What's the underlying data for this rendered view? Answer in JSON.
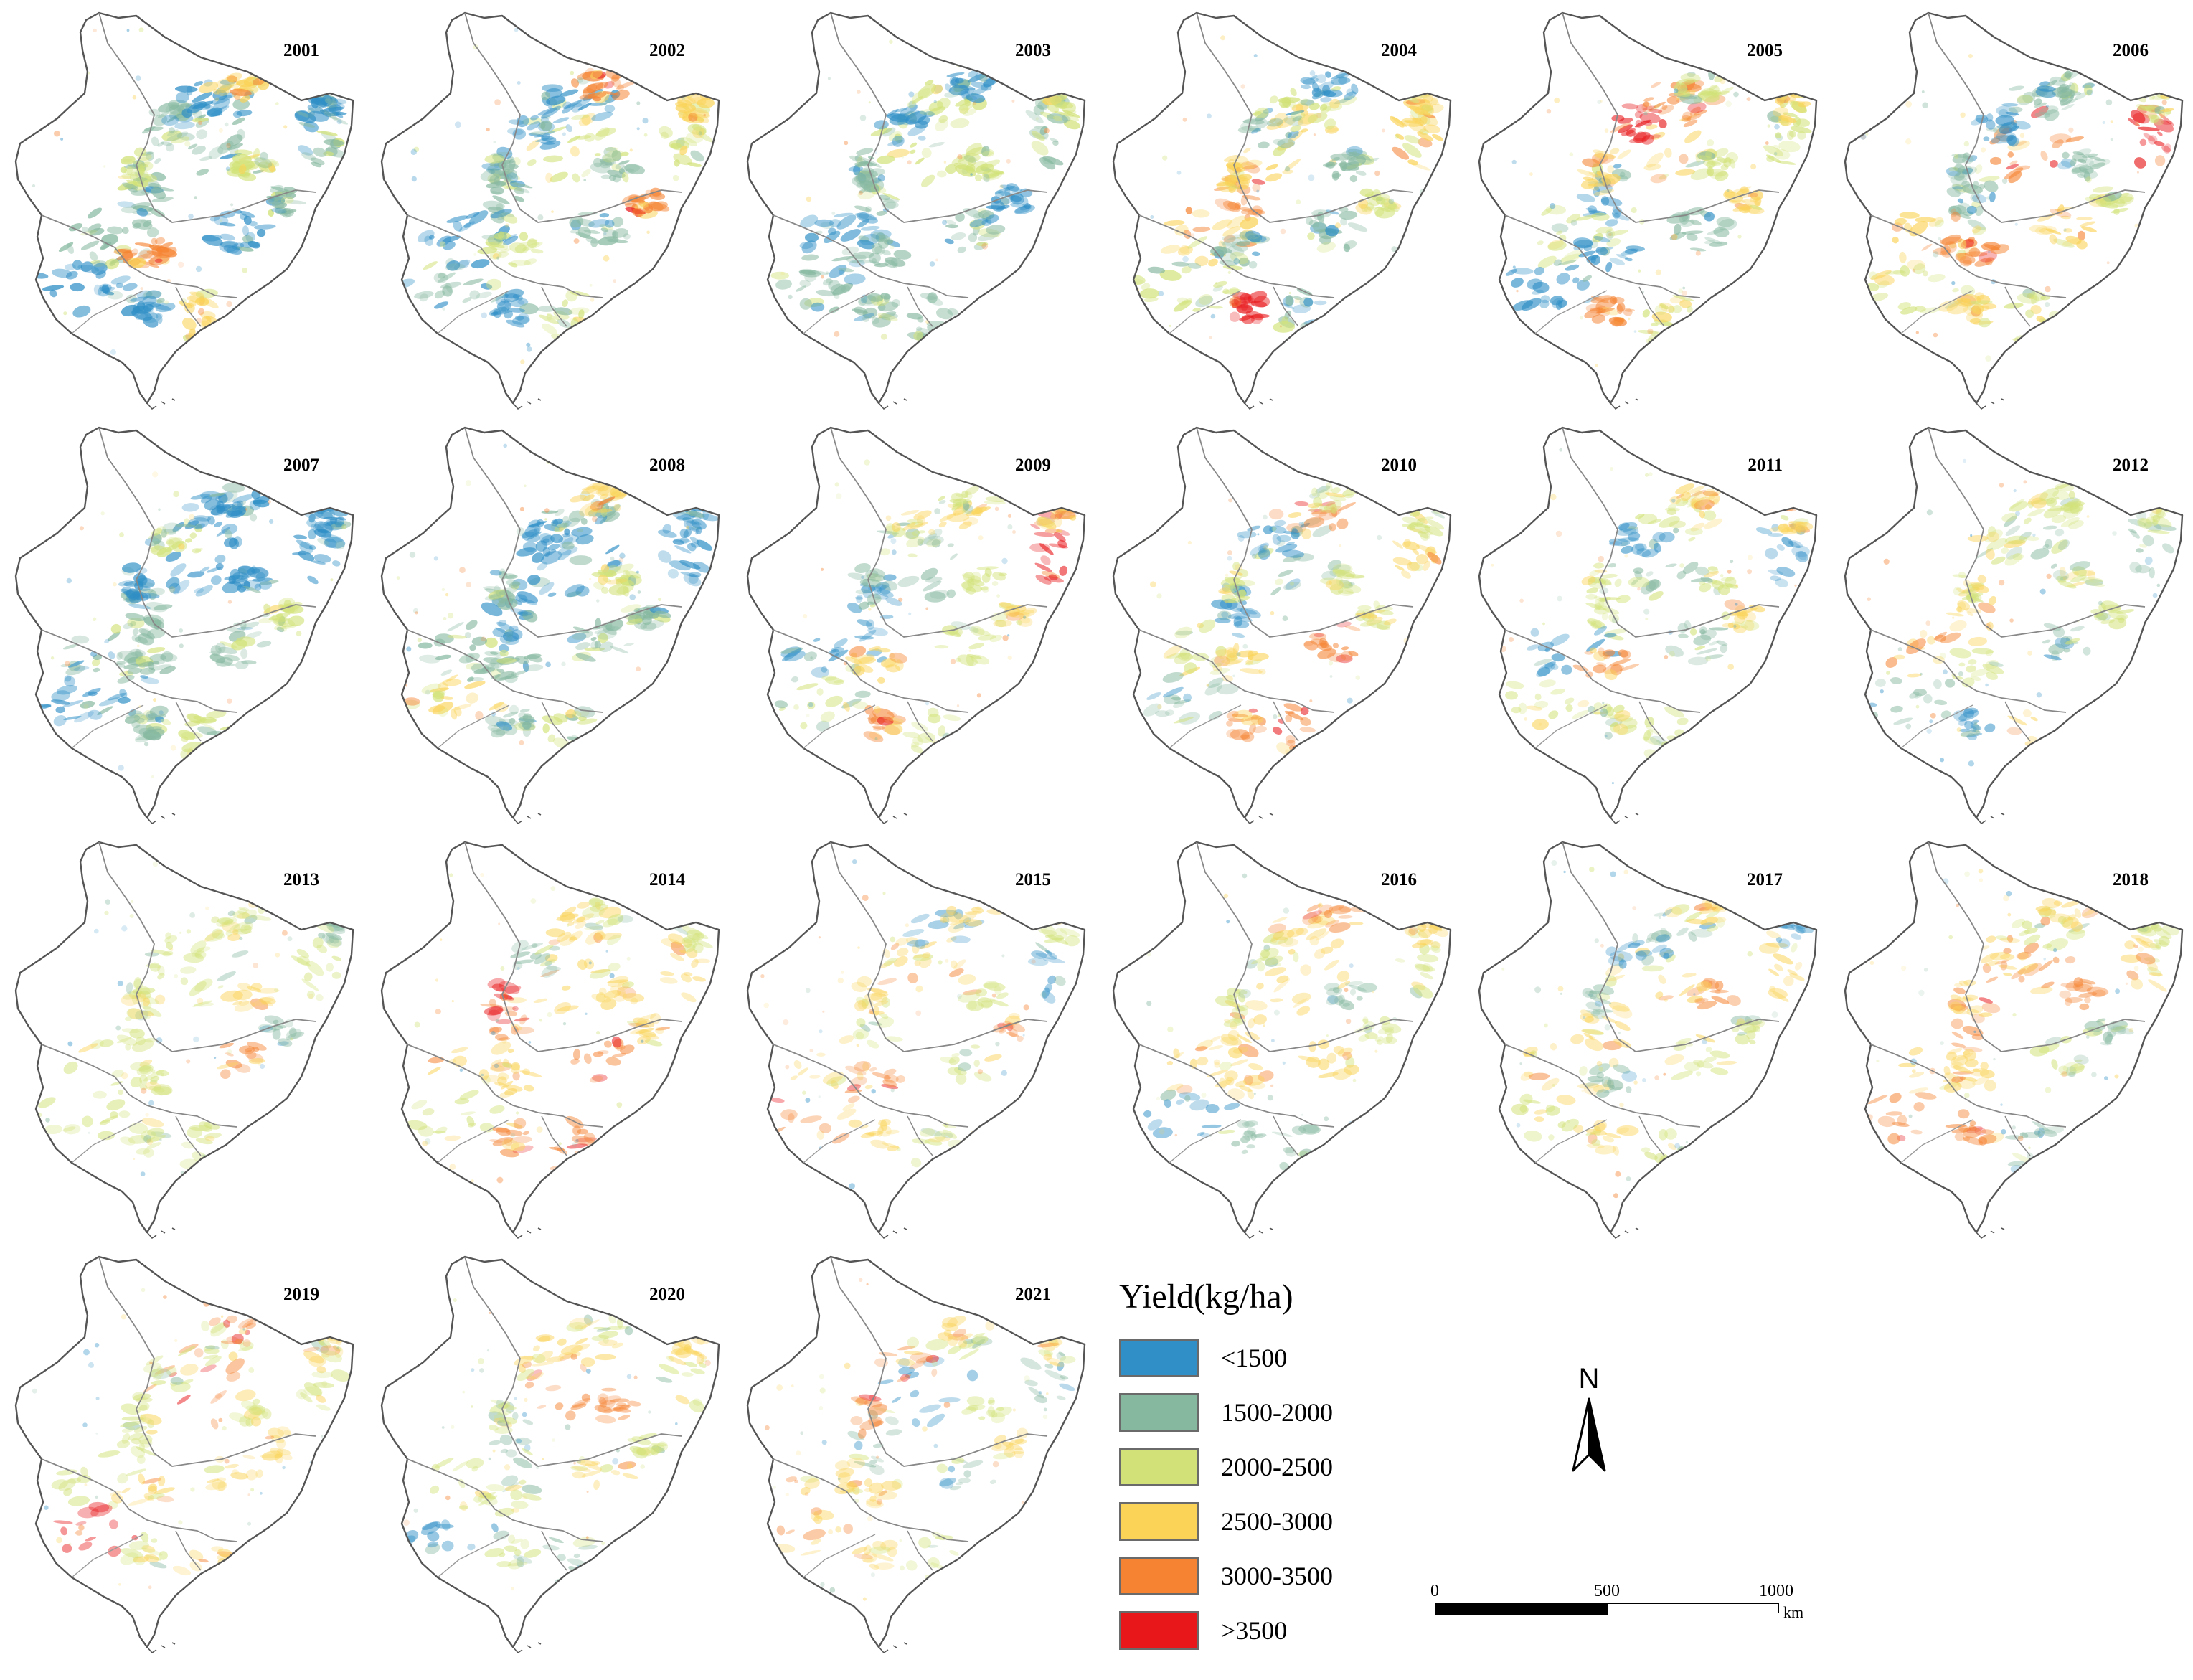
{
  "panels": [
    {
      "year": "2001",
      "intensity": 0.95,
      "weights": [
        1.0,
        0.9,
        0.25,
        0.3,
        0.2,
        0.05
      ]
    },
    {
      "year": "2002",
      "intensity": 0.85,
      "weights": [
        0.55,
        0.8,
        0.5,
        0.35,
        0.15,
        0.05
      ]
    },
    {
      "year": "2003",
      "intensity": 0.85,
      "weights": [
        0.45,
        0.95,
        0.4,
        0.3,
        0.1,
        0.05
      ]
    },
    {
      "year": "2004",
      "intensity": 0.85,
      "weights": [
        0.6,
        0.85,
        0.45,
        0.35,
        0.15,
        0.05
      ]
    },
    {
      "year": "2005",
      "intensity": 0.8,
      "weights": [
        0.3,
        0.35,
        0.9,
        0.6,
        0.2,
        0.05
      ]
    },
    {
      "year": "2006",
      "intensity": 0.75,
      "weights": [
        0.5,
        0.45,
        0.8,
        0.4,
        0.15,
        0.05
      ]
    },
    {
      "year": "2007",
      "intensity": 0.85,
      "weights": [
        0.6,
        0.9,
        0.45,
        0.35,
        0.15,
        0.05
      ]
    },
    {
      "year": "2008",
      "intensity": 0.85,
      "weights": [
        0.65,
        0.95,
        0.35,
        0.3,
        0.15,
        0.05
      ]
    },
    {
      "year": "2009",
      "intensity": 0.65,
      "weights": [
        0.2,
        0.3,
        0.9,
        0.7,
        0.2,
        0.05
      ]
    },
    {
      "year": "2010",
      "intensity": 0.65,
      "weights": [
        0.25,
        0.35,
        0.9,
        0.6,
        0.2,
        0.05
      ]
    },
    {
      "year": "2011",
      "intensity": 0.65,
      "weights": [
        0.3,
        0.35,
        0.85,
        0.6,
        0.2,
        0.05
      ]
    },
    {
      "year": "2012",
      "intensity": 0.55,
      "weights": [
        0.3,
        0.45,
        0.85,
        0.5,
        0.15,
        0.05
      ]
    },
    {
      "year": "2013",
      "intensity": 0.5,
      "weights": [
        0.2,
        0.25,
        0.8,
        0.8,
        0.35,
        0.05
      ]
    },
    {
      "year": "2014",
      "intensity": 0.55,
      "weights": [
        0.15,
        0.2,
        0.7,
        0.8,
        0.55,
        0.1
      ]
    },
    {
      "year": "2015",
      "intensity": 0.45,
      "weights": [
        0.2,
        0.3,
        0.75,
        0.8,
        0.3,
        0.05
      ]
    },
    {
      "year": "2016",
      "intensity": 0.55,
      "weights": [
        0.3,
        0.5,
        0.8,
        0.75,
        0.3,
        0.05
      ]
    },
    {
      "year": "2017",
      "intensity": 0.55,
      "weights": [
        0.3,
        0.4,
        0.8,
        0.7,
        0.4,
        0.08
      ]
    },
    {
      "year": "2018",
      "intensity": 0.55,
      "weights": [
        0.15,
        0.25,
        0.75,
        0.85,
        0.55,
        0.1
      ]
    },
    {
      "year": "2019",
      "intensity": 0.5,
      "weights": [
        0.15,
        0.3,
        0.8,
        0.8,
        0.35,
        0.05
      ]
    },
    {
      "year": "2020",
      "intensity": 0.5,
      "weights": [
        0.1,
        0.25,
        0.8,
        0.85,
        0.35,
        0.05
      ]
    },
    {
      "year": "2021",
      "intensity": 0.45,
      "weights": [
        0.1,
        0.2,
        0.75,
        0.85,
        0.35,
        0.05
      ]
    }
  ],
  "legend": {
    "title": "Yield(kg/ha)",
    "items": [
      {
        "label": "<1500",
        "color": "#2f8fc6"
      },
      {
        "label": "1500-2000",
        "color": "#86b8a0"
      },
      {
        "label": "2000-2500",
        "color": "#d2e278"
      },
      {
        "label": "2500-3000",
        "color": "#fad357"
      },
      {
        "label": "3000-3500",
        "color": "#f58332"
      },
      {
        "label": ">3500",
        "color": "#e8171a"
      }
    ]
  },
  "north_arrow": {
    "label": "N"
  },
  "scale_bar": {
    "ticks": [
      "0",
      "500",
      "1000"
    ],
    "unit": "km"
  }
}
